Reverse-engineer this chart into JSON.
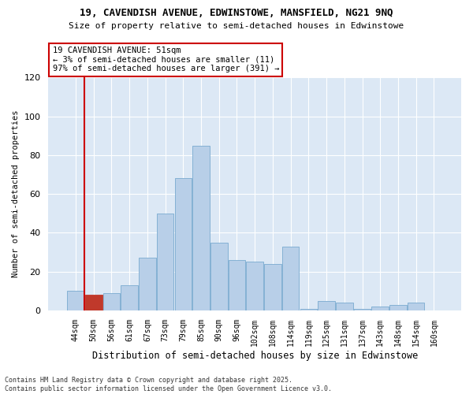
{
  "title1": "19, CAVENDISH AVENUE, EDWINSTOWE, MANSFIELD, NG21 9NQ",
  "title2": "Size of property relative to semi-detached houses in Edwinstowe",
  "xlabel": "Distribution of semi-detached houses by size in Edwinstowe",
  "ylabel": "Number of semi-detached properties",
  "annotation_title": "19 CAVENDISH AVENUE: 51sqm",
  "annotation_line1": "← 3% of semi-detached houses are smaller (11)",
  "annotation_line2": "97% of semi-detached houses are larger (391) →",
  "footer1": "Contains HM Land Registry data © Crown copyright and database right 2025.",
  "footer2": "Contains public sector information licensed under the Open Government Licence v3.0.",
  "bar_color": "#b8cfe8",
  "bar_edge_color": "#7aaad0",
  "highlight_bar_color": "#c0392b",
  "highlight_bar_edge": "#c0392b",
  "categories": [
    "44sqm",
    "50sqm",
    "56sqm",
    "61sqm",
    "67sqm",
    "73sqm",
    "79sqm",
    "85sqm",
    "90sqm",
    "96sqm",
    "102sqm",
    "108sqm",
    "114sqm",
    "119sqm",
    "125sqm",
    "131sqm",
    "137sqm",
    "143sqm",
    "148sqm",
    "154sqm",
    "160sqm"
  ],
  "values": [
    10,
    8,
    9,
    13,
    27,
    50,
    68,
    85,
    35,
    26,
    25,
    24,
    33,
    1,
    5,
    4,
    1,
    2,
    3,
    4,
    0
  ],
  "highlight_index": 1,
  "vline_x": 0.5,
  "ylim": [
    0,
    120
  ],
  "yticks": [
    0,
    20,
    40,
    60,
    80,
    100,
    120
  ],
  "fig_bg": "#ffffff",
  "plot_bg": "#dce8f5",
  "grid_color": "#ffffff",
  "annotation_box_facecolor": "#ffffff",
  "annotation_box_edgecolor": "#cc0000",
  "vline_color": "#cc0000"
}
